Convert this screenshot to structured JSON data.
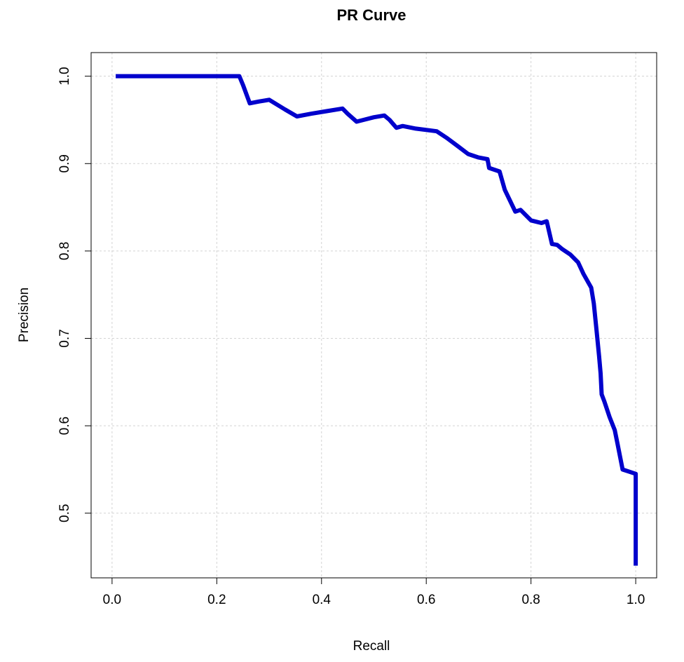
{
  "chart_data": {
    "type": "line",
    "title": "PR Curve",
    "xlabel": "Recall",
    "ylabel": "Precision",
    "xlim": [
      -0.04,
      1.04
    ],
    "ylim": [
      0.426,
      1.027
    ],
    "x_ticks": [
      0.0,
      0.2,
      0.4,
      0.6,
      0.8,
      1.0
    ],
    "x_tick_labels": [
      "0.0",
      "0.2",
      "0.4",
      "0.6",
      "0.8",
      "1.0"
    ],
    "y_ticks": [
      0.5,
      0.6,
      0.7,
      0.8,
      0.9,
      1.0
    ],
    "y_tick_labels": [
      "0.5",
      "0.6",
      "0.7",
      "0.8",
      "0.9",
      "1.0"
    ],
    "grid": true,
    "series": [
      {
        "name": "PR",
        "color": "#0000CC",
        "x": [
          0.007,
          0.02,
          0.1,
          0.2,
          0.243,
          0.25,
          0.263,
          0.28,
          0.3,
          0.33,
          0.353,
          0.38,
          0.41,
          0.44,
          0.45,
          0.467,
          0.48,
          0.5,
          0.52,
          0.53,
          0.543,
          0.555,
          0.58,
          0.62,
          0.64,
          0.66,
          0.68,
          0.7,
          0.717,
          0.72,
          0.74,
          0.75,
          0.77,
          0.78,
          0.8,
          0.82,
          0.83,
          0.84,
          0.85,
          0.86,
          0.875,
          0.89,
          0.9,
          0.915,
          0.92,
          0.925,
          0.93,
          0.933,
          0.935,
          0.94,
          0.95,
          0.96,
          0.965,
          0.97,
          0.975,
          0.99,
          1.0,
          1.0
        ],
        "y": [
          1.0,
          1.0,
          1.0,
          1.0,
          1.0,
          0.99,
          0.969,
          0.971,
          0.973,
          0.962,
          0.954,
          0.957,
          0.96,
          0.963,
          0.957,
          0.948,
          0.95,
          0.953,
          0.955,
          0.95,
          0.941,
          0.943,
          0.94,
          0.937,
          0.929,
          0.92,
          0.911,
          0.907,
          0.905,
          0.895,
          0.891,
          0.87,
          0.845,
          0.847,
          0.835,
          0.832,
          0.834,
          0.808,
          0.807,
          0.802,
          0.796,
          0.787,
          0.774,
          0.758,
          0.74,
          0.71,
          0.68,
          0.66,
          0.636,
          0.628,
          0.61,
          0.595,
          0.58,
          0.565,
          0.55,
          0.547,
          0.545,
          0.44
        ]
      }
    ]
  }
}
